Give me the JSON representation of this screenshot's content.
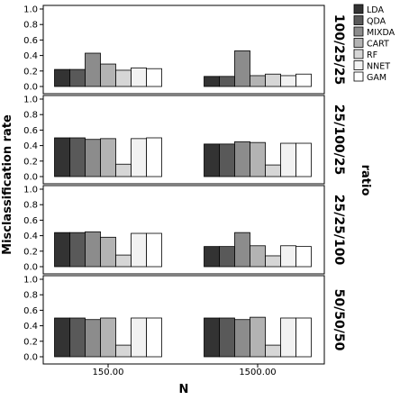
{
  "chart_data": {
    "type": "bar",
    "xlabel": "N",
    "ylabel": "Misclassification rate",
    "facet_label": "ratio",
    "categories": [
      "150.00",
      "1500.00"
    ],
    "ylim": [
      0,
      1.0
    ],
    "yticks": [
      "0.0",
      "0.2",
      "0.4",
      "0.6",
      "0.8",
      "1.0"
    ],
    "legend": {
      "placement": "top-right",
      "entries": [
        {
          "name": "LDA",
          "color": "#333333"
        },
        {
          "name": "QDA",
          "color": "#595959"
        },
        {
          "name": "MIXDA",
          "color": "#8c8c8c"
        },
        {
          "name": "CART",
          "color": "#b3b3b3"
        },
        {
          "name": "RF",
          "color": "#d6d6d6"
        },
        {
          "name": "NNET",
          "color": "#f2f2f2"
        },
        {
          "name": "GAM",
          "color": "#ffffff"
        }
      ]
    },
    "panels": [
      {
        "label": "100/25/25",
        "series": [
          {
            "name": "LDA",
            "values": [
              0.22,
              0.13
            ]
          },
          {
            "name": "QDA",
            "values": [
              0.22,
              0.13
            ]
          },
          {
            "name": "MIXDA",
            "values": [
              0.43,
              0.46
            ]
          },
          {
            "name": "CART",
            "values": [
              0.29,
              0.14
            ]
          },
          {
            "name": "RF",
            "values": [
              0.21,
              0.16
            ]
          },
          {
            "name": "NNET",
            "values": [
              0.24,
              0.14
            ]
          },
          {
            "name": "GAM",
            "values": [
              0.23,
              0.16
            ]
          }
        ]
      },
      {
        "label": "25/100/25",
        "series": [
          {
            "name": "LDA",
            "values": [
              0.5,
              0.42
            ]
          },
          {
            "name": "QDA",
            "values": [
              0.5,
              0.42
            ]
          },
          {
            "name": "MIXDA",
            "values": [
              0.48,
              0.45
            ]
          },
          {
            "name": "CART",
            "values": [
              0.49,
              0.44
            ]
          },
          {
            "name": "RF",
            "values": [
              0.16,
              0.15
            ]
          },
          {
            "name": "NNET",
            "values": [
              0.49,
              0.43
            ]
          },
          {
            "name": "GAM",
            "values": [
              0.5,
              0.43
            ]
          }
        ]
      },
      {
        "label": "25/25/100",
        "series": [
          {
            "name": "LDA",
            "values": [
              0.44,
              0.26
            ]
          },
          {
            "name": "QDA",
            "values": [
              0.44,
              0.26
            ]
          },
          {
            "name": "MIXDA",
            "values": [
              0.45,
              0.44
            ]
          },
          {
            "name": "CART",
            "values": [
              0.38,
              0.27
            ]
          },
          {
            "name": "RF",
            "values": [
              0.15,
              0.14
            ]
          },
          {
            "name": "NNET",
            "values": [
              0.43,
              0.27
            ]
          },
          {
            "name": "GAM",
            "values": [
              0.43,
              0.26
            ]
          }
        ]
      },
      {
        "label": "50/50/50",
        "series": [
          {
            "name": "LDA",
            "values": [
              0.5,
              0.5
            ]
          },
          {
            "name": "QDA",
            "values": [
              0.5,
              0.5
            ]
          },
          {
            "name": "MIXDA",
            "values": [
              0.48,
              0.48
            ]
          },
          {
            "name": "CART",
            "values": [
              0.5,
              0.51
            ]
          },
          {
            "name": "RF",
            "values": [
              0.15,
              0.15
            ]
          },
          {
            "name": "NNET",
            "values": [
              0.5,
              0.5
            ]
          },
          {
            "name": "GAM",
            "values": [
              0.5,
              0.5
            ]
          }
        ]
      }
    ]
  }
}
